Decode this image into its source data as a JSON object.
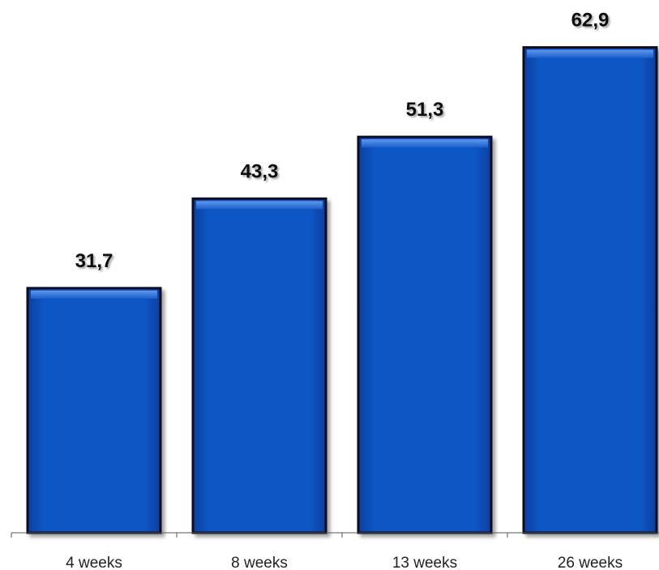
{
  "chart_data": {
    "type": "bar",
    "categories": [
      "4 weeks",
      "8 weeks",
      "13 weeks",
      "26 weeks"
    ],
    "values": [
      31.7,
      43.3,
      51.3,
      62.9
    ],
    "data_labels": [
      "31,7",
      "43,3",
      "51,3",
      "62,9"
    ],
    "title": "",
    "xlabel": "",
    "ylabel": "",
    "ylim": [
      0,
      70
    ],
    "grid": false,
    "legend": "none",
    "bar_color": "#0a4fb8",
    "bar_border_color": "#0b1020"
  }
}
